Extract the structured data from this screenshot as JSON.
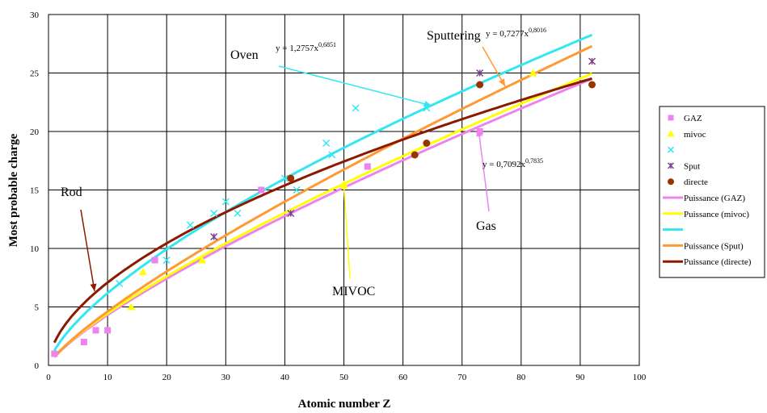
{
  "chart_data": {
    "type": "scatter",
    "xlabel": "Atomic number Z",
    "ylabel": "Most probable charge",
    "xlim": [
      0,
      100
    ],
    "ylim": [
      0,
      30
    ],
    "xticks": [
      0,
      10,
      20,
      30,
      40,
      50,
      60,
      70,
      80,
      90,
      100
    ],
    "yticks": [
      0,
      5,
      10,
      15,
      20,
      25,
      30
    ],
    "grid": true,
    "legend_position": "right",
    "series": [
      {
        "name": "GAZ",
        "marker": "square",
        "color": "#ee82ee",
        "points": [
          [
            1,
            1
          ],
          [
            6,
            2
          ],
          [
            8,
            3
          ],
          [
            10,
            3
          ],
          [
            18,
            9
          ],
          [
            36,
            15
          ],
          [
            54,
            17
          ],
          [
            73,
            20
          ]
        ]
      },
      {
        "name": "mivoc",
        "marker": "triangle",
        "color": "#ffff00",
        "points": [
          [
            14,
            5
          ],
          [
            16,
            8
          ],
          [
            26,
            9
          ],
          [
            50,
            15.5
          ],
          [
            82,
            25
          ]
        ]
      },
      {
        "name": "",
        "marker": "x",
        "color": "#33e6f2",
        "points": [
          [
            12,
            7
          ],
          [
            20,
            9
          ],
          [
            24,
            12
          ],
          [
            28,
            13
          ],
          [
            30,
            14
          ],
          [
            32,
            13
          ],
          [
            40,
            16
          ],
          [
            42,
            15
          ],
          [
            47,
            19
          ],
          [
            48,
            18
          ],
          [
            52,
            22
          ],
          [
            64,
            22
          ]
        ]
      },
      {
        "name": "Sput",
        "marker": "asterisk",
        "color": "#7b3f8c",
        "points": [
          [
            28,
            11
          ],
          [
            41,
            13
          ],
          [
            73,
            25
          ],
          [
            92,
            26
          ]
        ]
      },
      {
        "name": "directe",
        "marker": "circle",
        "color": "#993300",
        "points": [
          [
            41,
            16
          ],
          [
            62,
            18
          ],
          [
            64,
            19
          ],
          [
            73,
            24
          ],
          [
            92,
            24
          ]
        ]
      }
    ],
    "fits": [
      {
        "name": "Puissance (GAZ)",
        "color": "#ee82ee",
        "a": 0.7092,
        "b": 0.7835
      },
      {
        "name": "Puissance (mivoc)",
        "color": "#ffff00",
        "a": 0.74,
        "b": 0.778
      },
      {
        "name": "",
        "color": "#33e6f2",
        "a": 1.2757,
        "b": 0.6851
      },
      {
        "name": "Puissance (Sput)",
        "color": "#ff9933",
        "a": 0.7277,
        "b": 0.8016
      },
      {
        "name": "Puissance (directe)",
        "color": "#8b1a00",
        "a": 1.95,
        "b": 0.56
      }
    ],
    "annotations": {
      "oven": "Oven",
      "sputtering": "Sputtering",
      "rod": "Rod",
      "mivoc": "MIVOC",
      "gas": "Gas",
      "eq_oven_base": "y = 1,2757x",
      "eq_oven_exp": "0,6851",
      "eq_sput_base": "y = 0,7277x",
      "eq_sput_exp": "0,8016",
      "eq_gas_base": "y = 0,7092x",
      "eq_gas_exp": "0,7835"
    },
    "legend": [
      {
        "label": "GAZ",
        "type": "marker",
        "marker": "square",
        "color": "#ee82ee"
      },
      {
        "label": "mivoc",
        "type": "marker",
        "marker": "triangle",
        "color": "#ffff00"
      },
      {
        "label": "",
        "type": "marker",
        "marker": "x",
        "color": "#33e6f2"
      },
      {
        "label": "Sput",
        "type": "marker",
        "marker": "asterisk",
        "color": "#7b3f8c"
      },
      {
        "label": "directe",
        "type": "marker",
        "marker": "circle",
        "color": "#993300"
      },
      {
        "label": "Puissance (GAZ)",
        "type": "line",
        "color": "#ee82ee"
      },
      {
        "label": "Puissance (mivoc)",
        "type": "line",
        "color": "#ffff00"
      },
      {
        "label": "",
        "type": "line",
        "color": "#33e6f2"
      },
      {
        "label": "Puissance (Sput)",
        "type": "line",
        "color": "#ff9933"
      },
      {
        "label": "Puissance (directe)",
        "type": "line",
        "color": "#8b1a00"
      }
    ]
  }
}
